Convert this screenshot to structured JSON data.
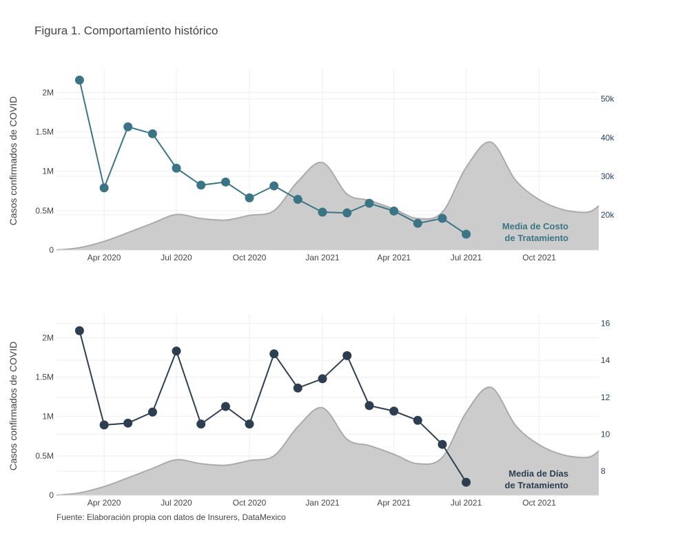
{
  "title": "Figura 1. Comportamíento histórico",
  "source": "Fuente: Elaboración propia con datos de Insurers, DataMexico",
  "colors": {
    "area": "#cccccc",
    "area_line": "#aaaaaa",
    "cost": "#3b7585",
    "days": "#2c3e50"
  },
  "chart_data": [
    {
      "type": "line",
      "ylabel": "Casos confirmados de COVID",
      "ylim_left": [
        0,
        2300000
      ],
      "ylim_right": [
        10900,
        57800
      ],
      "left_ticks": [
        0,
        500000,
        1000000,
        1500000,
        2000000
      ],
      "left_tick_labels": [
        "0",
        "0.5M",
        "1M",
        "1.5M",
        "2M"
      ],
      "right_ticks": [
        20000,
        30000,
        40000,
        50000
      ],
      "right_tick_labels": [
        "20k",
        "30k",
        "40k",
        "50k"
      ],
      "x_ticks": [
        "2020-04-01",
        "2020-07-01",
        "2020-10-01",
        "2021-01-01",
        "2021-04-01",
        "2021-07-01",
        "2021-10-01"
      ],
      "x_tick_labels": [
        "Apr 2020",
        "Jul 2020",
        "Oct 2020",
        "Jan 2021",
        "Apr 2021",
        "Jul 2021",
        "Oct 2021"
      ],
      "xlim": [
        "2020-02-01",
        "2021-12-15"
      ],
      "area_series": {
        "x": [
          "2020-02-01",
          "2020-03-01",
          "2020-04-01",
          "2020-05-01",
          "2020-06-01",
          "2020-07-01",
          "2020-08-01",
          "2020-09-01",
          "2020-10-01",
          "2020-11-01",
          "2020-12-01",
          "2021-01-01",
          "2021-02-01",
          "2021-03-01",
          "2021-04-01",
          "2021-05-01",
          "2021-06-01",
          "2021-07-01",
          "2021-08-01",
          "2021-09-01",
          "2021-10-01",
          "2021-11-01",
          "2021-12-01",
          "2021-12-15"
        ],
        "y": [
          0,
          30000,
          110000,
          220000,
          340000,
          450000,
          400000,
          380000,
          440000,
          500000,
          870000,
          1110000,
          710000,
          630000,
          520000,
          400000,
          480000,
          1050000,
          1370000,
          890000,
          640000,
          510000,
          480000,
          560000
        ]
      },
      "series": [
        {
          "name": "Media de Costo de Tratamiento",
          "label_lines": [
            "Media de Costo",
            "de Tratamiento"
          ],
          "x": [
            "2020-03-01",
            "2020-04-01",
            "2020-05-01",
            "2020-06-01",
            "2020-07-01",
            "2020-08-01",
            "2020-09-01",
            "2020-10-01",
            "2020-11-01",
            "2020-12-01",
            "2021-01-01",
            "2021-02-01",
            "2021-03-01",
            "2021-04-01",
            "2021-05-01",
            "2021-06-01",
            "2021-07-01"
          ],
          "y": [
            54900,
            27000,
            42800,
            41000,
            32100,
            27700,
            28500,
            24400,
            27500,
            24000,
            20700,
            20500,
            23000,
            21000,
            17800,
            19100,
            15000
          ]
        }
      ]
    },
    {
      "type": "line",
      "ylabel": "Casos confirmados de COVID",
      "ylim_left": [
        0,
        2300000
      ],
      "ylim_right": [
        6.7,
        16.5
      ],
      "left_ticks": [
        0,
        500000,
        1000000,
        1500000,
        2000000
      ],
      "left_tick_labels": [
        "0",
        "0.5M",
        "1M",
        "1.5M",
        "2M"
      ],
      "right_ticks": [
        8,
        10,
        12,
        14,
        16
      ],
      "right_tick_labels": [
        "8",
        "10",
        "12",
        "14",
        "16"
      ],
      "x_ticks": [
        "2020-04-01",
        "2020-07-01",
        "2020-10-01",
        "2021-01-01",
        "2021-04-01",
        "2021-07-01",
        "2021-10-01"
      ],
      "x_tick_labels": [
        "Apr 2020",
        "Jul 2020",
        "Oct 2020",
        "Jan 2021",
        "Apr 2021",
        "Jul 2021",
        "Oct 2021"
      ],
      "xlim": [
        "2020-02-01",
        "2021-12-15"
      ],
      "area_series": {
        "x": [
          "2020-02-01",
          "2020-03-01",
          "2020-04-01",
          "2020-05-01",
          "2020-06-01",
          "2020-07-01",
          "2020-08-01",
          "2020-09-01",
          "2020-10-01",
          "2020-11-01",
          "2020-12-01",
          "2021-01-01",
          "2021-02-01",
          "2021-03-01",
          "2021-04-01",
          "2021-05-01",
          "2021-06-01",
          "2021-07-01",
          "2021-08-01",
          "2021-09-01",
          "2021-10-01",
          "2021-11-01",
          "2021-12-01",
          "2021-12-15"
        ],
        "y": [
          0,
          30000,
          110000,
          220000,
          340000,
          450000,
          400000,
          380000,
          440000,
          500000,
          870000,
          1110000,
          710000,
          630000,
          520000,
          400000,
          480000,
          1050000,
          1370000,
          890000,
          640000,
          510000,
          480000,
          560000
        ]
      },
      "series": [
        {
          "name": "Media de Días de Tratamiento",
          "label_lines": [
            "Media de Días",
            "de Tratamiento"
          ],
          "x": [
            "2020-03-01",
            "2020-04-01",
            "2020-05-01",
            "2020-06-01",
            "2020-07-01",
            "2020-08-01",
            "2020-09-01",
            "2020-10-01",
            "2020-11-01",
            "2020-12-01",
            "2021-01-01",
            "2021-02-01",
            "2021-03-01",
            "2021-04-01",
            "2021-05-01",
            "2021-06-01",
            "2021-07-01"
          ],
          "y": [
            15.6,
            10.5,
            10.6,
            11.2,
            14.5,
            10.55,
            11.5,
            10.55,
            14.35,
            12.5,
            13.0,
            14.25,
            11.55,
            11.25,
            10.75,
            9.45,
            7.4
          ]
        }
      ]
    }
  ]
}
